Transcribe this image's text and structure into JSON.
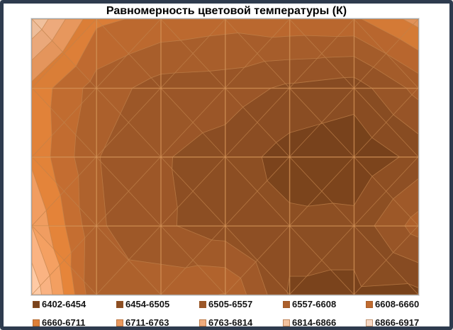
{
  "title": "Равномерность цветовой температуры (К)",
  "legend": {
    "position": "bottom",
    "items": [
      {
        "label": "6402-6454",
        "color": "#7A431C"
      },
      {
        "label": "6454-6505",
        "color": "#8C4E23"
      },
      {
        "label": "6505-6557",
        "color": "#9C5728"
      },
      {
        "label": "6557-6608",
        "color": "#AC602C"
      },
      {
        "label": "6608-6660",
        "color": "#C06B30"
      },
      {
        "label": "6660-6711",
        "color": "#DE8038"
      },
      {
        "label": "6711-6763",
        "color": "#EA995E"
      },
      {
        "label": "6763-6814",
        "color": "#F0AC7D"
      },
      {
        "label": "6814-6866",
        "color": "#F3C29E"
      },
      {
        "label": "6866-6917",
        "color": "#F7D9C5"
      }
    ]
  },
  "chart_data": {
    "type": "heatmap",
    "subtype": "contour-surface-top-view",
    "title": "Равномерность цветовой температуры (К)",
    "unit": "K",
    "value_min": 6402,
    "value_max": 6917,
    "band_thresholds": [
      6402,
      6454,
      6505,
      6557,
      6608,
      6660,
      6711,
      6763,
      6814,
      6866,
      6917
    ],
    "bands": [
      {
        "label": "6402-6454",
        "min": 6402,
        "max": 6454,
        "color": "#7A431C"
      },
      {
        "label": "6454-6505",
        "min": 6454,
        "max": 6505,
        "color": "#8C4E23"
      },
      {
        "label": "6505-6557",
        "min": 6505,
        "max": 6557,
        "color": "#9C5728"
      },
      {
        "label": "6557-6608",
        "min": 6557,
        "max": 6608,
        "color": "#AC602C"
      },
      {
        "label": "6608-6660",
        "min": 6608,
        "max": 6660,
        "color": "#C06B30"
      },
      {
        "label": "6660-6711",
        "min": 6660,
        "max": 6711,
        "color": "#DE8038"
      },
      {
        "label": "6711-6763",
        "min": 6711,
        "max": 6763,
        "color": "#EA995E"
      },
      {
        "label": "6763-6814",
        "min": 6763,
        "max": 6814,
        "color": "#F0AC7D"
      },
      {
        "label": "6814-6866",
        "min": 6814,
        "max": 6866,
        "color": "#F3C29E"
      },
      {
        "label": "6866-6917",
        "min": 6866,
        "max": 6917,
        "color": "#F7D9C5"
      }
    ],
    "grid": {
      "cols": 7,
      "rows": 5,
      "values": [
        [
          6862,
          6672,
          6645,
          6630,
          6645,
          6650,
          6730
        ],
        [
          6695,
          6585,
          6535,
          6530,
          6495,
          6478,
          6575
        ],
        [
          6700,
          6560,
          6510,
          6483,
          6432,
          6415,
          6470
        ],
        [
          6762,
          6565,
          6515,
          6475,
          6465,
          6470,
          6580
        ],
        [
          6858,
          6560,
          6590,
          6610,
          6450,
          6445,
          6440
        ]
      ]
    },
    "gridlines": true,
    "legend_position": "bottom",
    "xlabel": "",
    "ylabel": ""
  },
  "colors": {
    "window_border": "#2E3B4E",
    "background": "#FFFFFF",
    "plot_border": "#A6A6A6",
    "gridline": "rgba(228,164,100,0.6)",
    "facet_outline": "rgba(193,132,77,0.55)",
    "title_color": "#000000",
    "legend_text": "#141414"
  }
}
